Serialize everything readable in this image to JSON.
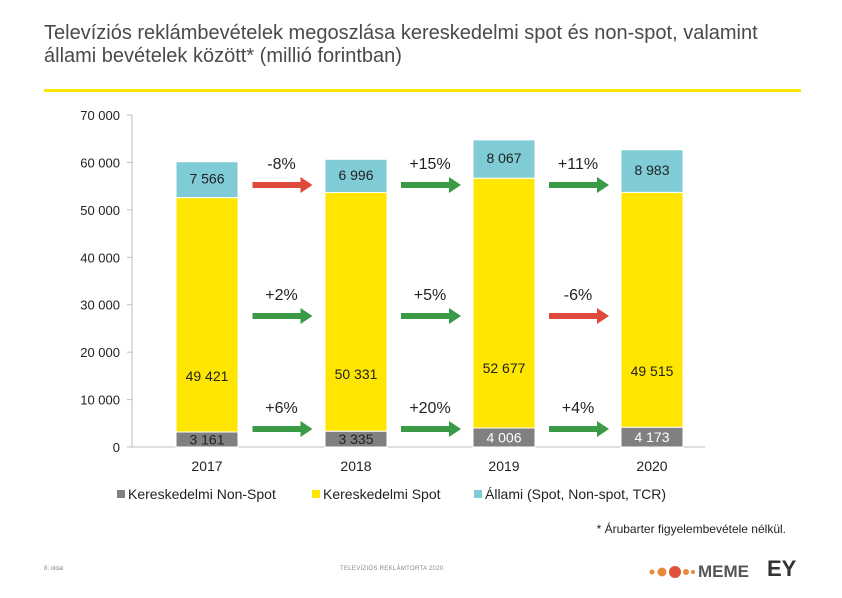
{
  "title": "Televíziós reklámbevételek megoszlása kereskedelmi spot és non-spot, valamint állami bevételek között* (millió forintban)",
  "footnote": "* Árubarter figyelembevétele nélkül.",
  "footer": {
    "page": "8. oldal",
    "center": "TELEVÍZIÓS REKLÁMTORTA 2020",
    "meme": "MEME",
    "ey": "EY"
  },
  "colors": {
    "nonspot": "#808080",
    "spot": "#ffe600",
    "state": "#7fcbd6",
    "up": "#3a9a46",
    "down": "#e04a3c",
    "accent": "#ffe600"
  },
  "chart_data": {
    "type": "bar",
    "stacked": true,
    "categories": [
      "2017",
      "2018",
      "2019",
      "2020"
    ],
    "series": [
      {
        "name": "Kereskedelmi Non-Spot",
        "values": [
          3161,
          3335,
          4006,
          4173
        ],
        "labels": [
          "3 161",
          "3 335",
          "4 006",
          "4 173"
        ]
      },
      {
        "name": "Kereskedelmi Spot",
        "values": [
          49421,
          50331,
          52677,
          49515
        ],
        "labels": [
          "49 421",
          "50 331",
          "52 677",
          "49 515"
        ]
      },
      {
        "name": "Állami (Spot, Non-spot, TCR)",
        "values": [
          7566,
          6996,
          8067,
          8983
        ],
        "labels": [
          "7 566",
          "6 996",
          "8 067",
          "8 983"
        ]
      }
    ],
    "ylim": [
      0,
      70000
    ],
    "yticks": [
      0,
      10000,
      20000,
      30000,
      40000,
      50000,
      60000,
      70000
    ],
    "ytick_labels": [
      "0",
      "10 000",
      "20 000",
      "30 000",
      "40 000",
      "50 000",
      "60 000",
      "70 000"
    ],
    "changes": [
      {
        "series": 0,
        "values": [
          "+6%",
          "+20%",
          "+4%"
        ],
        "directions": [
          "up",
          "up",
          "up"
        ]
      },
      {
        "series": 1,
        "values": [
          "+2%",
          "+5%",
          "-6%"
        ],
        "directions": [
          "up",
          "up",
          "down"
        ]
      },
      {
        "series": 2,
        "values": [
          "-8%",
          "+15%",
          "+11%"
        ],
        "directions": [
          "down",
          "up",
          "up"
        ]
      }
    ],
    "legend_position": "bottom"
  }
}
